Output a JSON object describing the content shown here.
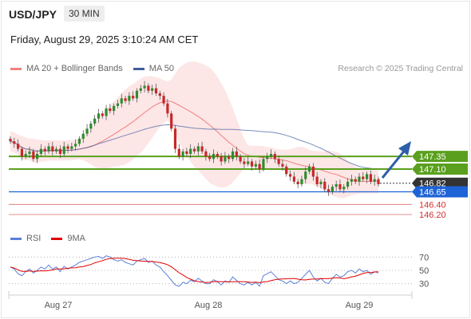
{
  "header": {
    "symbol": "USD/JPY",
    "timeframe": "30 MIN",
    "datetime": "Friday, August 29, 2025 3:10:24 AM CET"
  },
  "legend": {
    "ma20": "MA 20 + Bollinger Bands",
    "ma50": "MA 50",
    "credit": "Research © 2025 Trading Central"
  },
  "rsi_legend": {
    "rsi": "RSI",
    "ma9": "9MA"
  },
  "colors": {
    "ma20": "#f08080",
    "bollinger_fill": "#fde2e2",
    "ma50": "#3f5e9f",
    "bull": "#2e8b2e",
    "bear": "#c62828",
    "resistance": "#5aa01e",
    "current": "#333333",
    "support_blue": "#1e63d6",
    "support_red": "#d32f2f",
    "rsi": "#5b80d8",
    "rsi_ma": "#e00000",
    "arrow": "#2d5fa8"
  },
  "chart_data": {
    "type": "candlestick",
    "yrange": [
      145.9,
      148.9
    ],
    "x_labels": [
      "Aug 27",
      "Aug 28",
      "Aug 29"
    ],
    "closes": [
      147.65,
      147.6,
      147.5,
      147.35,
      147.4,
      147.45,
      147.3,
      147.4,
      147.5,
      147.45,
      147.55,
      147.45,
      147.5,
      147.4,
      147.55,
      147.5,
      147.55,
      147.6,
      147.7,
      147.8,
      147.9,
      148.0,
      148.1,
      148.2,
      148.15,
      148.3,
      148.25,
      148.35,
      148.4,
      148.5,
      148.45,
      148.55,
      148.5,
      148.65,
      148.7,
      148.75,
      148.65,
      148.7,
      148.6,
      148.55,
      148.4,
      148.2,
      147.9,
      147.5,
      147.35,
      147.45,
      147.4,
      147.5,
      147.45,
      147.55,
      147.45,
      147.35,
      147.3,
      147.4,
      147.35,
      147.25,
      147.35,
      147.3,
      147.45,
      147.35,
      147.25,
      147.2,
      147.25,
      147.15,
      147.2,
      147.1,
      147.3,
      147.35,
      147.4,
      147.3,
      147.2,
      147.15,
      147.0,
      146.95,
      146.85,
      146.8,
      146.9,
      147.05,
      147.15,
      146.95,
      146.8,
      146.85,
      146.7,
      146.65,
      146.75,
      146.8,
      146.7,
      146.75,
      146.85,
      146.9,
      146.85,
      146.95,
      146.9,
      147.0,
      146.85,
      146.9,
      146.8
    ],
    "levels": [
      {
        "label": "147.35",
        "value": 147.35,
        "kind": "resistance"
      },
      {
        "label": "147.10",
        "value": 147.1,
        "kind": "resistance"
      },
      {
        "label": "146.82",
        "value": 146.82,
        "kind": "current"
      },
      {
        "label": "146.65",
        "value": 146.65,
        "kind": "support_blue"
      },
      {
        "label": "146.40",
        "value": 146.4,
        "kind": "support_red"
      },
      {
        "label": "146.20",
        "value": 146.2,
        "kind": "support_red"
      }
    ],
    "rsi": {
      "yrange": [
        20,
        80
      ],
      "ticks": [
        70,
        50,
        30
      ],
      "values": [
        55,
        52,
        45,
        42,
        48,
        52,
        46,
        50,
        55,
        52,
        58,
        52,
        55,
        48,
        56,
        52,
        55,
        58,
        62,
        64,
        66,
        68,
        70,
        71,
        68,
        72,
        70,
        66,
        64,
        66,
        62,
        60,
        58,
        64,
        66,
        68,
        62,
        64,
        58,
        55,
        48,
        42,
        35,
        28,
        26,
        32,
        30,
        35,
        33,
        38,
        34,
        30,
        30,
        36,
        33,
        28,
        34,
        32,
        40,
        35,
        30,
        28,
        32,
        28,
        32,
        26,
        42,
        45,
        48,
        42,
        36,
        34,
        30,
        34,
        30,
        32,
        38,
        44,
        50,
        40,
        34,
        38,
        32,
        30,
        38,
        44,
        40,
        42,
        48,
        50,
        46,
        52,
        48,
        50,
        44,
        48,
        46
      ]
    }
  }
}
